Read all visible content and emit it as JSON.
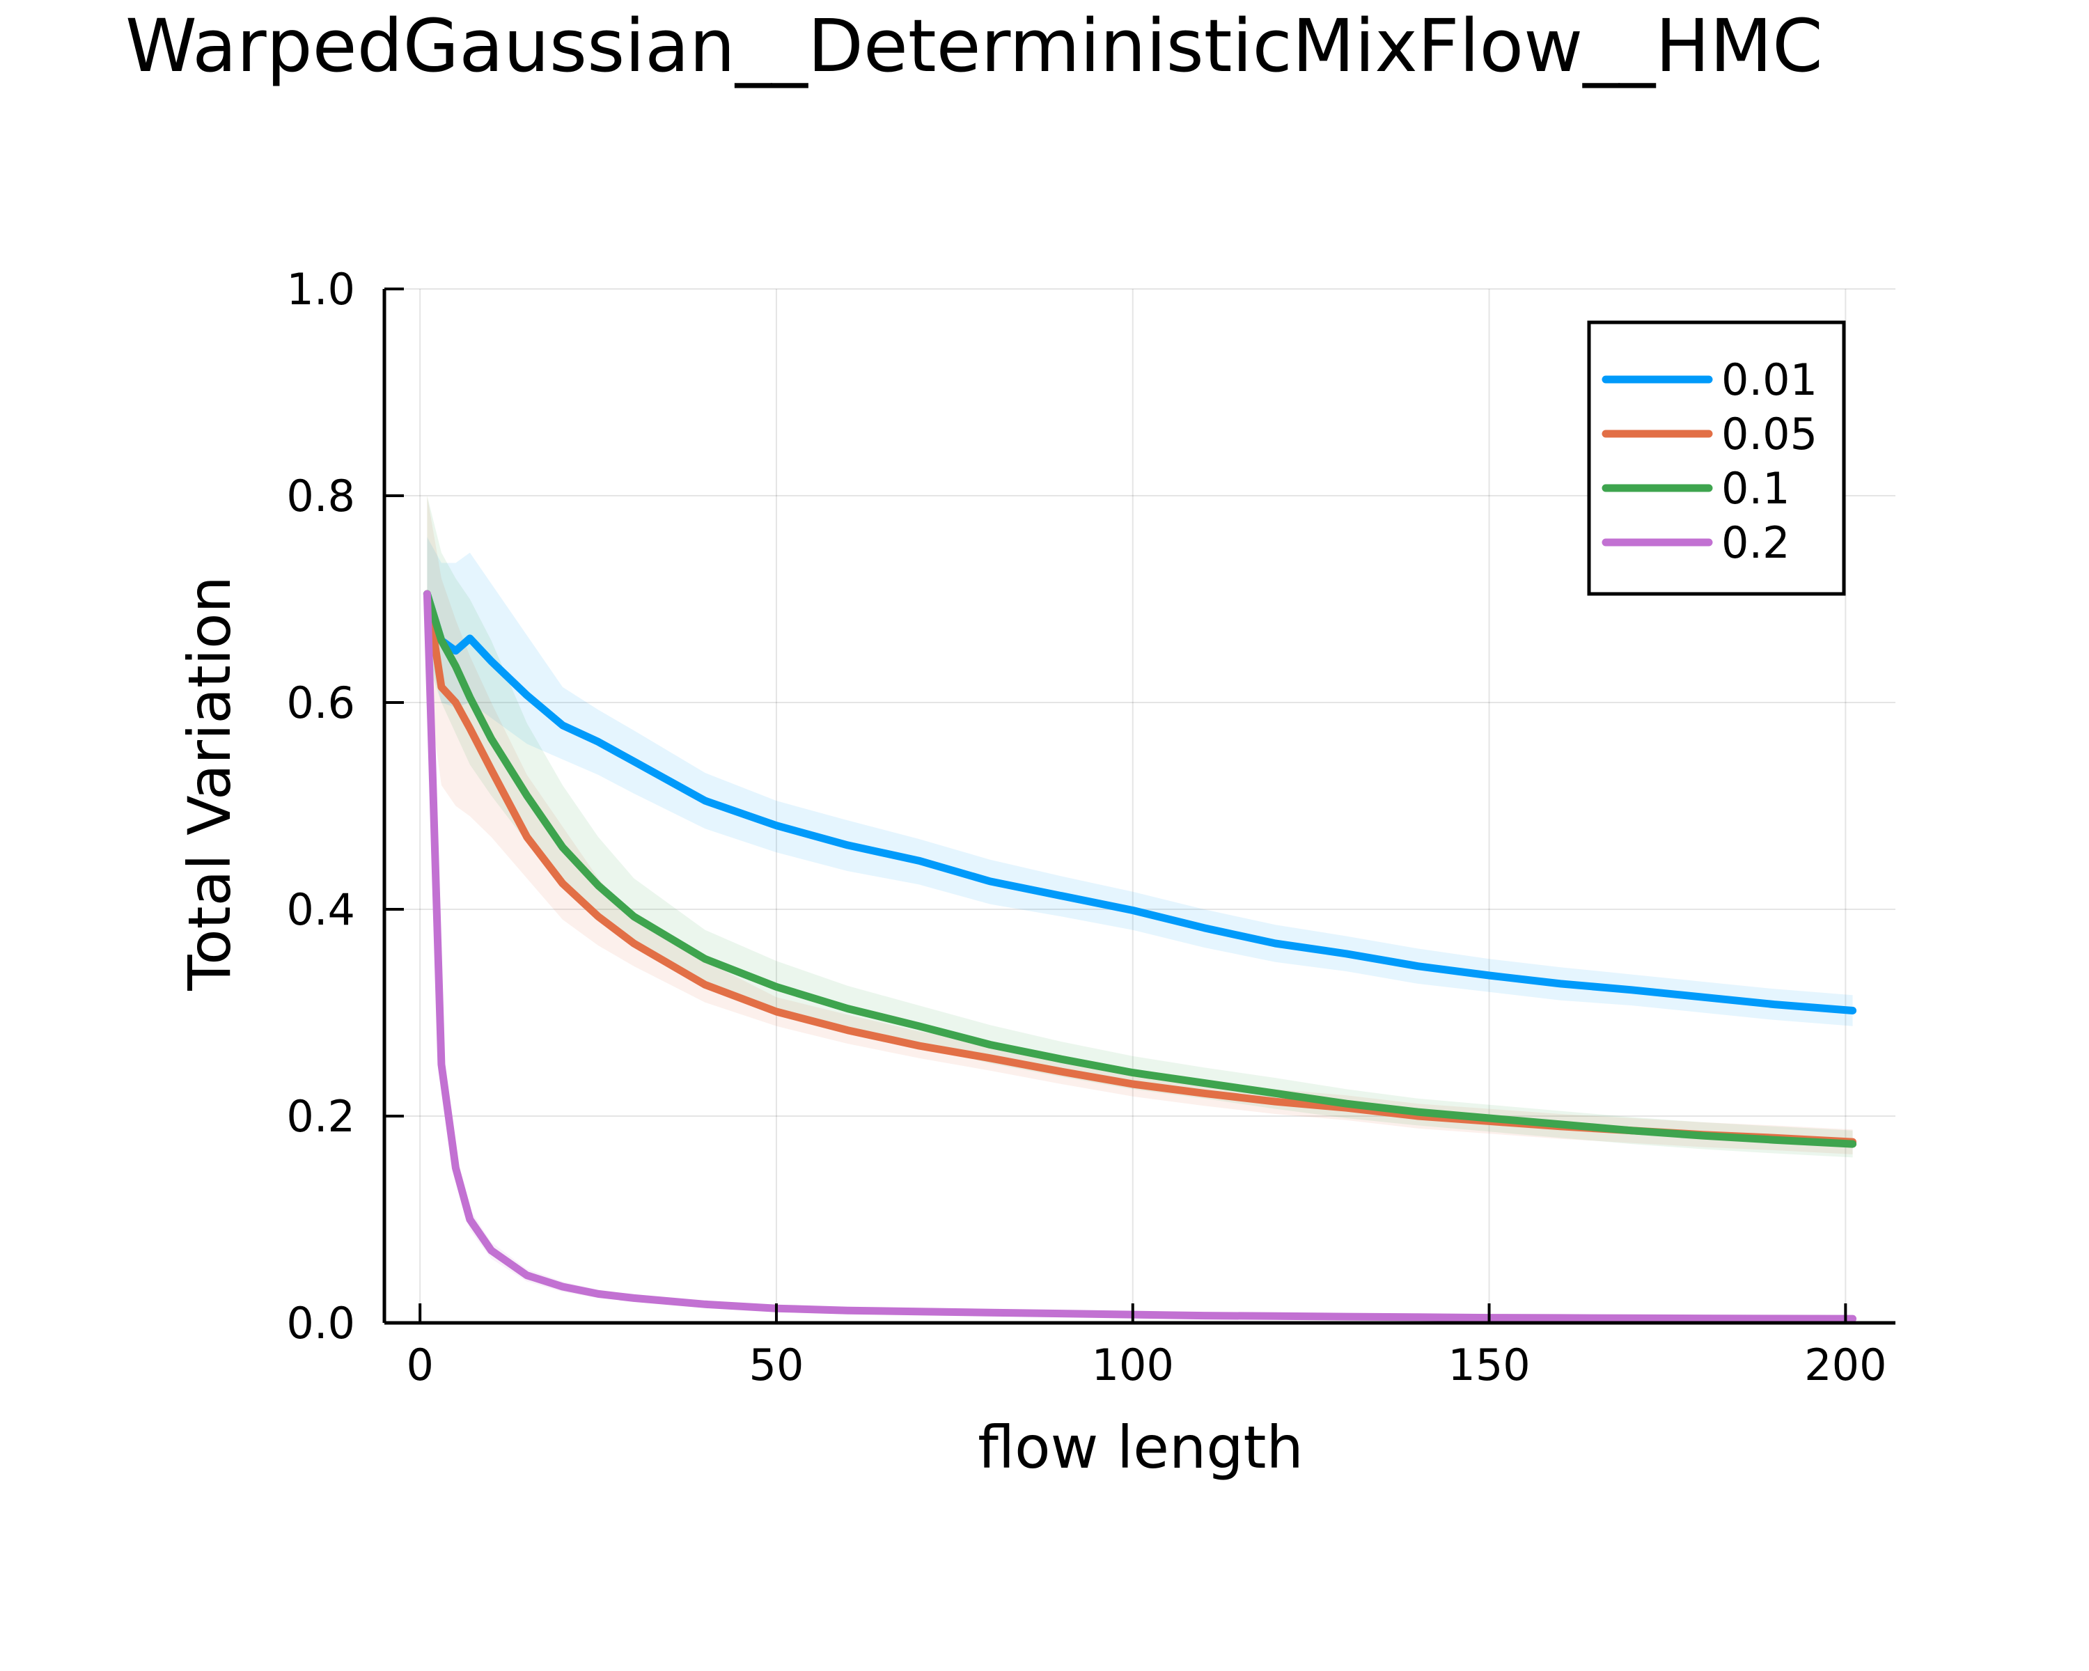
{
  "chart_data": {
    "type": "line",
    "title": "WarpedGaussian__DeterministicMixFlow__HMC",
    "xlabel": "flow length",
    "ylabel": "Total Variation",
    "xlim": [
      -5,
      207
    ],
    "ylim": [
      0.0,
      1.0
    ],
    "xticks": [
      "0",
      "50",
      "100",
      "150",
      "200"
    ],
    "xtick_values": [
      0,
      50,
      100,
      150,
      200
    ],
    "yticks": [
      "0.0",
      "0.2",
      "0.4",
      "0.6",
      "0.8",
      "1.0"
    ],
    "ytick_values": [
      0.0,
      0.2,
      0.4,
      0.6,
      0.8,
      1.0
    ],
    "grid": true,
    "legend": "top-right",
    "x": [
      1,
      3,
      5,
      7,
      10,
      15,
      20,
      25,
      30,
      40,
      50,
      60,
      70,
      80,
      90,
      100,
      110,
      120,
      130,
      140,
      150,
      160,
      170,
      180,
      190,
      201
    ],
    "series": [
      {
        "name": "0.01",
        "color": "#009AFA",
        "values": [
          0.705,
          0.66,
          0.65,
          0.662,
          0.64,
          0.607,
          0.578,
          0.562,
          0.543,
          0.505,
          0.481,
          0.462,
          0.447,
          0.427,
          0.413,
          0.399,
          0.382,
          0.367,
          0.357,
          0.345,
          0.336,
          0.328,
          0.322,
          0.315,
          0.308,
          0.302
        ],
        "upper": [
          0.76,
          0.735,
          0.735,
          0.745,
          0.715,
          0.665,
          0.615,
          0.593,
          0.573,
          0.532,
          0.505,
          0.486,
          0.468,
          0.448,
          0.432,
          0.417,
          0.4,
          0.385,
          0.374,
          0.362,
          0.352,
          0.344,
          0.337,
          0.33,
          0.323,
          0.317
        ],
        "lower": [
          0.655,
          0.6,
          0.595,
          0.6,
          0.585,
          0.56,
          0.545,
          0.53,
          0.512,
          0.478,
          0.455,
          0.437,
          0.424,
          0.405,
          0.393,
          0.38,
          0.363,
          0.349,
          0.34,
          0.328,
          0.32,
          0.312,
          0.307,
          0.3,
          0.293,
          0.287
        ]
      },
      {
        "name": "0.05",
        "color": "#E26F46",
        "values": [
          0.705,
          0.615,
          0.6,
          0.575,
          0.535,
          0.47,
          0.425,
          0.393,
          0.367,
          0.327,
          0.301,
          0.283,
          0.268,
          0.256,
          0.243,
          0.231,
          0.222,
          0.214,
          0.208,
          0.2,
          0.195,
          0.19,
          0.186,
          0.182,
          0.179,
          0.175
        ],
        "upper": [
          0.8,
          0.72,
          0.68,
          0.645,
          0.6,
          0.53,
          0.48,
          0.43,
          0.39,
          0.35,
          0.315,
          0.298,
          0.282,
          0.27,
          0.256,
          0.244,
          0.234,
          0.226,
          0.22,
          0.212,
          0.207,
          0.202,
          0.198,
          0.194,
          0.191,
          0.187
        ],
        "lower": [
          0.62,
          0.52,
          0.5,
          0.49,
          0.47,
          0.43,
          0.39,
          0.365,
          0.345,
          0.31,
          0.287,
          0.27,
          0.256,
          0.244,
          0.231,
          0.219,
          0.21,
          0.202,
          0.196,
          0.188,
          0.183,
          0.178,
          0.174,
          0.17,
          0.167,
          0.163
        ]
      },
      {
        "name": "0.1",
        "color": "#3EA44E",
        "values": [
          0.705,
          0.66,
          0.635,
          0.605,
          0.565,
          0.51,
          0.46,
          0.423,
          0.393,
          0.352,
          0.325,
          0.304,
          0.287,
          0.269,
          0.255,
          0.242,
          0.232,
          0.222,
          0.212,
          0.204,
          0.198,
          0.192,
          0.186,
          0.181,
          0.177,
          0.173
        ],
        "upper": [
          0.8,
          0.745,
          0.72,
          0.7,
          0.66,
          0.58,
          0.52,
          0.47,
          0.43,
          0.38,
          0.35,
          0.326,
          0.307,
          0.288,
          0.272,
          0.258,
          0.247,
          0.237,
          0.226,
          0.217,
          0.211,
          0.205,
          0.199,
          0.194,
          0.19,
          0.186
        ],
        "lower": [
          0.64,
          0.6,
          0.57,
          0.54,
          0.51,
          0.465,
          0.425,
          0.393,
          0.366,
          0.328,
          0.303,
          0.284,
          0.268,
          0.251,
          0.238,
          0.226,
          0.217,
          0.207,
          0.198,
          0.191,
          0.185,
          0.179,
          0.173,
          0.168,
          0.164,
          0.16
        ]
      },
      {
        "name": "0.2",
        "color": "#C271D2",
        "values": [
          0.705,
          0.25,
          0.15,
          0.1,
          0.07,
          0.046,
          0.035,
          0.028,
          0.024,
          0.018,
          0.014,
          0.012,
          0.011,
          0.01,
          0.009,
          0.008,
          0.007,
          0.0065,
          0.006,
          0.0055,
          0.005,
          0.0048,
          0.0045,
          0.0043,
          0.0041,
          0.004
        ],
        "upper": [
          0.71,
          0.265,
          0.162,
          0.11,
          0.078,
          0.052,
          0.04,
          0.032,
          0.027,
          0.021,
          0.017,
          0.015,
          0.013,
          0.012,
          0.011,
          0.01,
          0.009,
          0.0085,
          0.008,
          0.0075,
          0.007,
          0.0068,
          0.0065,
          0.0063,
          0.0061,
          0.006
        ],
        "lower": [
          0.7,
          0.235,
          0.138,
          0.09,
          0.062,
          0.04,
          0.03,
          0.024,
          0.021,
          0.015,
          0.011,
          0.009,
          0.009,
          0.008,
          0.007,
          0.006,
          0.005,
          0.0045,
          0.004,
          0.0035,
          0.003,
          0.0028,
          0.0025,
          0.0023,
          0.0021,
          0.002
        ]
      }
    ]
  }
}
